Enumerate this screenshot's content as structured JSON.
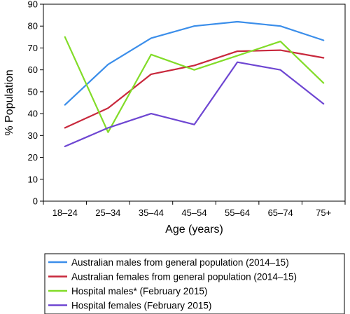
{
  "chart_data": {
    "type": "line",
    "xlabel": "Age (years)",
    "ylabel": "% Population",
    "ylim": [
      0,
      90
    ],
    "yticks": [
      0,
      10,
      20,
      30,
      40,
      50,
      60,
      70,
      80,
      90
    ],
    "categories": [
      "18–24",
      "25–34",
      "35–44",
      "45–54",
      "55–64",
      "65–74",
      "75+"
    ],
    "grid": false,
    "legend_position": "bottom",
    "series": [
      {
        "name": "Australian males from general population (2014–15)",
        "color": "#3b8eea",
        "values": [
          44,
          62.5,
          74.5,
          80,
          82,
          80,
          73.5
        ]
      },
      {
        "name": "Australian females from general population (2014–15)",
        "color": "#c8283c",
        "values": [
          33.5,
          42.5,
          58,
          62,
          68.5,
          69,
          65.5
        ]
      },
      {
        "name": "Hospital males* (February 2015)",
        "color": "#82dc28",
        "values": [
          75,
          31.5,
          67,
          60,
          66.5,
          73,
          54
        ]
      },
      {
        "name": "Hospital females (February 2015)",
        "color": "#6e46d2",
        "values": [
          25,
          33.5,
          40,
          35,
          63.5,
          60,
          44.5
        ]
      }
    ]
  }
}
